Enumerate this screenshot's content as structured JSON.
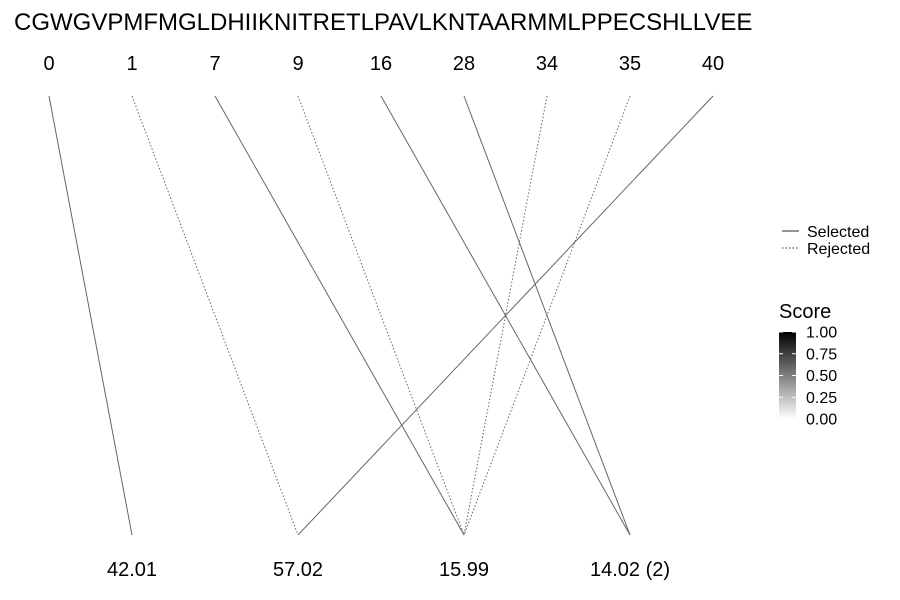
{
  "sequence": "CGWGVPMFMGLDHIIKNITRETLPAVLKNTAARMMLPPECSHLLVEE",
  "top_positions": [
    "0",
    "1",
    "7",
    "9",
    "16",
    "28",
    "34",
    "35",
    "40"
  ],
  "bottom_masses": [
    "42.01",
    "57.02",
    "15.99",
    "14.02 (2)"
  ],
  "connections": [
    {
      "from": "0",
      "to": "42.01",
      "status": "selected"
    },
    {
      "from": "1",
      "to": "57.02",
      "status": "rejected"
    },
    {
      "from": "7",
      "to": "15.99",
      "status": "selected"
    },
    {
      "from": "9",
      "to": "15.99",
      "status": "rejected"
    },
    {
      "from": "16",
      "to": "14.02 (2)",
      "status": "selected"
    },
    {
      "from": "28",
      "to": "14.02 (2)",
      "status": "selected"
    },
    {
      "from": "34",
      "to": "15.99",
      "status": "rejected"
    },
    {
      "from": "35",
      "to": "15.99",
      "status": "rejected"
    },
    {
      "from": "40",
      "to": "57.02",
      "status": "selected"
    }
  ],
  "legend": {
    "selected_label": "Selected",
    "rejected_label": "Rejected"
  },
  "score_legend": {
    "title": "Score",
    "ticks": [
      "1.00",
      "0.75",
      "0.50",
      "0.25",
      "0.00"
    ],
    "color_high": "#000000",
    "color_low": "#ffffff"
  },
  "line_color": "#666666"
}
